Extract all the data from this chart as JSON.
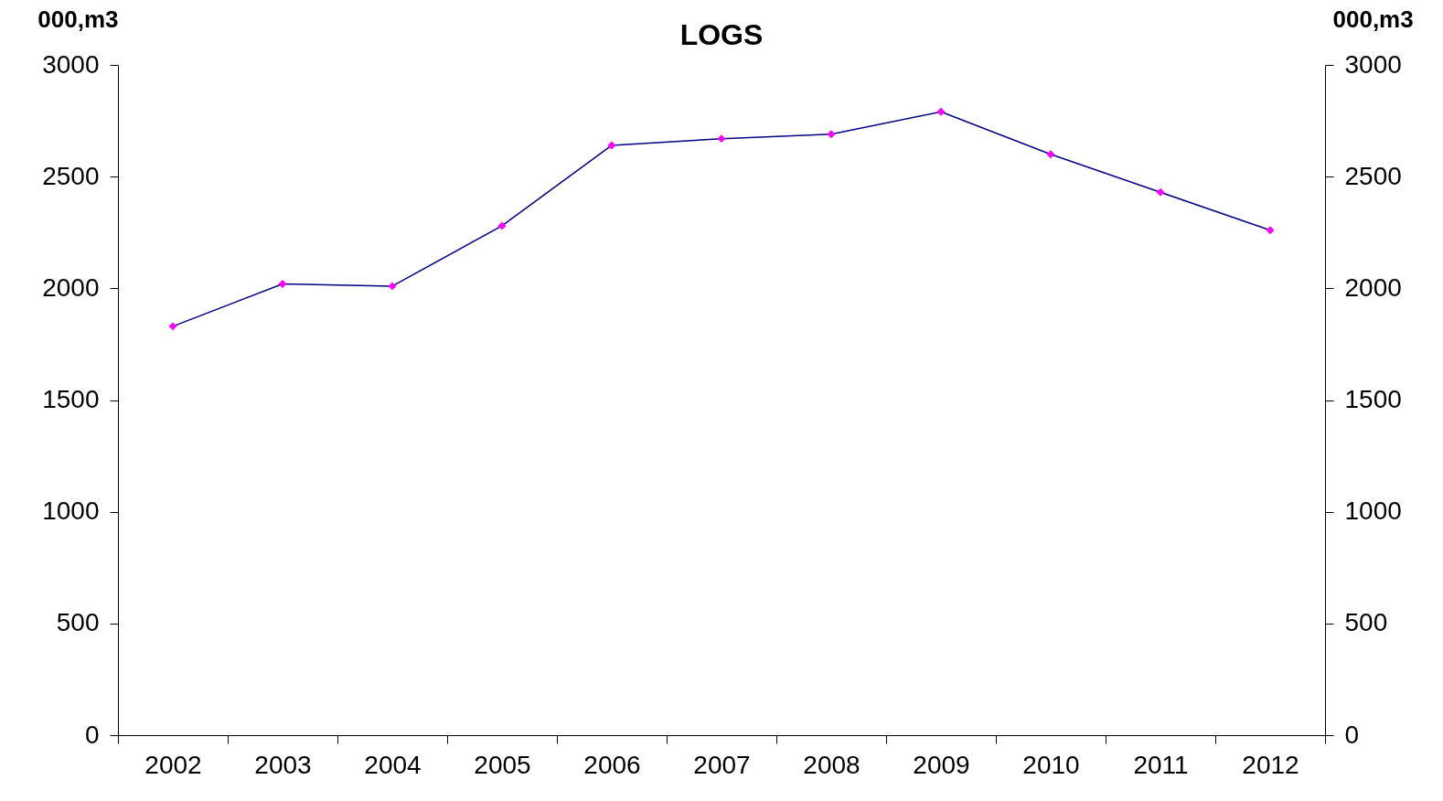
{
  "chart_data": {
    "type": "line",
    "title": "LOGS",
    "ylabel": "000,m3",
    "y2label": "000,m3",
    "categories": [
      "2002",
      "2003",
      "2004",
      "2005",
      "2006",
      "2007",
      "2008",
      "2009",
      "2010",
      "2011",
      "2012"
    ],
    "series": [
      {
        "color": "#000080",
        "values": [
          1830,
          2020,
          2010,
          2280,
          2640,
          2670,
          2690,
          2790,
          2600,
          2430,
          2260
        ]
      }
    ],
    "ylim": [
      0,
      3000
    ],
    "yticks": [
      0,
      500,
      1000,
      1500,
      2000,
      2500,
      3000
    ],
    "y2lim": [
      0,
      3000
    ],
    "y2ticks": [
      0,
      500,
      1000,
      1500,
      2000,
      2500,
      3000
    ],
    "marker": "diamond",
    "line_style": "solid",
    "grid": false
  }
}
